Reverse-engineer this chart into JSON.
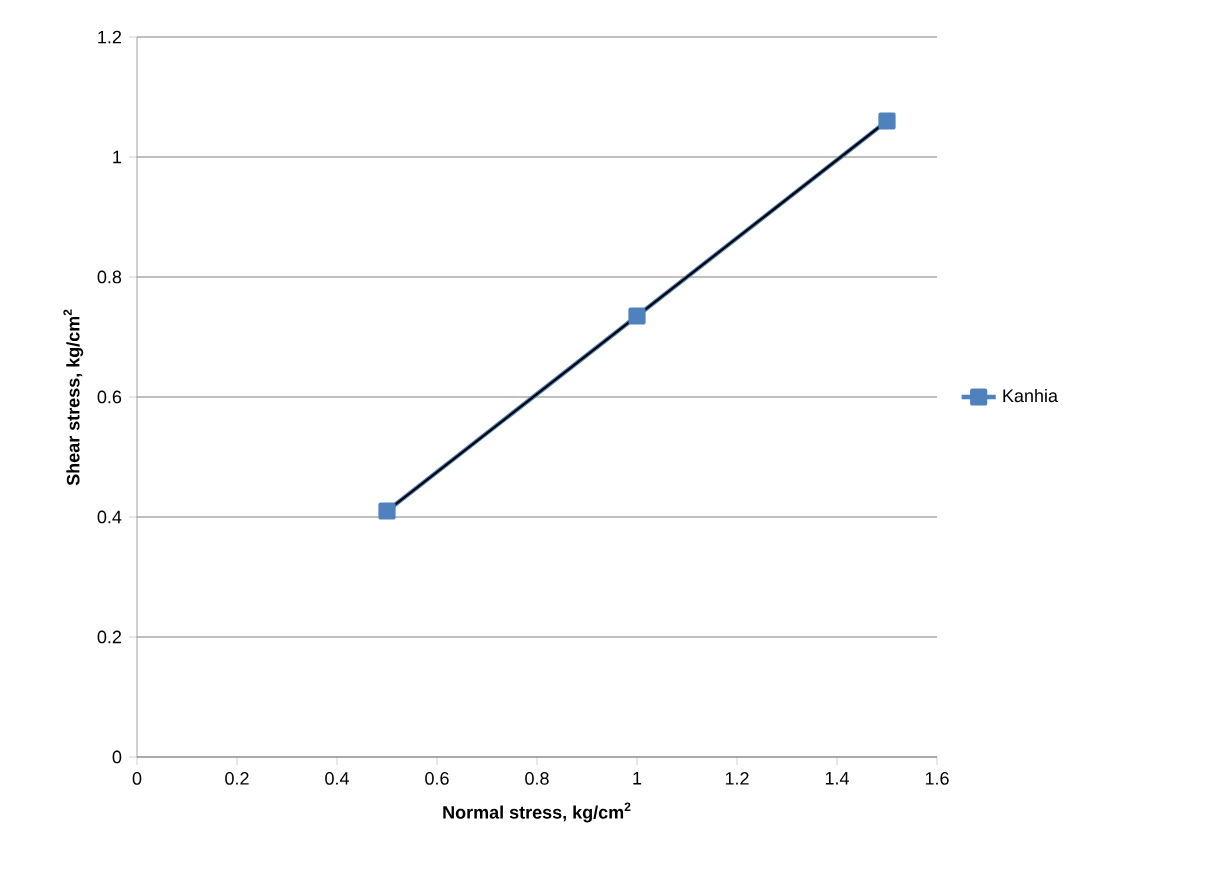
{
  "chart_data": {
    "type": "line",
    "xlabel": "Normal stress, kg/cm$^{2}$",
    "ylabel": "Shear stress, kg/cm$^{2}$",
    "xlim": [
      0,
      1.6
    ],
    "ylim": [
      0,
      1.2
    ],
    "xticks": [
      0,
      0.2,
      0.4,
      0.6,
      0.8,
      1,
      1.2,
      1.4,
      1.6
    ],
    "yticks": [
      0,
      0.2,
      0.4,
      0.6,
      0.8,
      1,
      1.2
    ],
    "grid": "y",
    "legend": "right",
    "marker": "square",
    "series": [
      {
        "name": "Kanhia",
        "color": "#4f81bd",
        "x": [
          0.5,
          1,
          1.5
        ],
        "values": [
          0.41,
          0.735,
          1.06
        ]
      },
      {
        "type": "line",
        "color": "#000000",
        "marker": "none",
        "x": [
          0.5,
          1.5
        ],
        "values": [
          0.41,
          1.06
        ]
      }
    ]
  }
}
